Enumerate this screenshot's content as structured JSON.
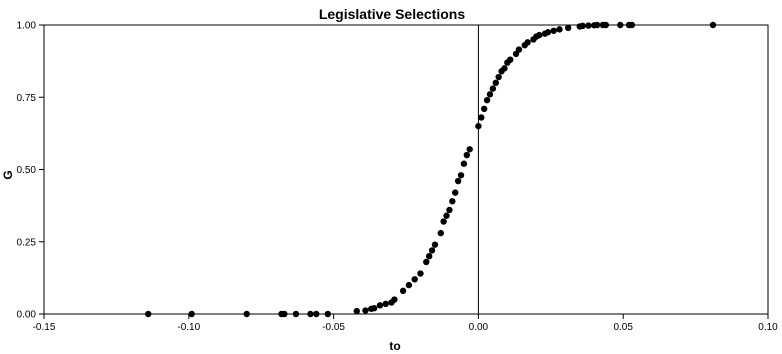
{
  "chart_data": {
    "type": "scatter",
    "title": "Legislative Selections",
    "xlabel": "to",
    "ylabel": "G",
    "xlim": [
      -0.15,
      0.1
    ],
    "ylim": [
      0.0,
      1.0
    ],
    "xticks": [
      "-0.15",
      "-0.10",
      "-0.05",
      "0.00",
      "0.05",
      "0.10"
    ],
    "yticks": [
      "0.00",
      "0.25",
      "0.50",
      "0.75",
      "1.00"
    ],
    "grid": false,
    "reference_line_x": 0.0,
    "marker_color": "#000000",
    "points": [
      [
        -0.114,
        0.0
      ],
      [
        -0.099,
        0.0
      ],
      [
        -0.08,
        0.0
      ],
      [
        -0.068,
        0.0
      ],
      [
        -0.067,
        0.0
      ],
      [
        -0.063,
        0.0
      ],
      [
        -0.058,
        0.0
      ],
      [
        -0.056,
        0.0
      ],
      [
        -0.052,
        0.0
      ],
      [
        -0.042,
        0.01
      ],
      [
        -0.039,
        0.012
      ],
      [
        -0.037,
        0.018
      ],
      [
        -0.036,
        0.02
      ],
      [
        -0.034,
        0.03
      ],
      [
        -0.032,
        0.035
      ],
      [
        -0.03,
        0.04
      ],
      [
        -0.029,
        0.05
      ],
      [
        -0.026,
        0.08
      ],
      [
        -0.024,
        0.1
      ],
      [
        -0.022,
        0.12
      ],
      [
        -0.02,
        0.14
      ],
      [
        -0.018,
        0.18
      ],
      [
        -0.017,
        0.2
      ],
      [
        -0.016,
        0.22
      ],
      [
        -0.015,
        0.24
      ],
      [
        -0.013,
        0.28
      ],
      [
        -0.012,
        0.32
      ],
      [
        -0.011,
        0.34
      ],
      [
        -0.01,
        0.36
      ],
      [
        -0.009,
        0.39
      ],
      [
        -0.008,
        0.42
      ],
      [
        -0.007,
        0.46
      ],
      [
        -0.006,
        0.48
      ],
      [
        -0.005,
        0.52
      ],
      [
        -0.004,
        0.55
      ],
      [
        -0.003,
        0.57
      ],
      [
        0.0,
        0.65
      ],
      [
        0.001,
        0.68
      ],
      [
        0.002,
        0.71
      ],
      [
        0.003,
        0.74
      ],
      [
        0.004,
        0.76
      ],
      [
        0.005,
        0.78
      ],
      [
        0.006,
        0.8
      ],
      [
        0.007,
        0.82
      ],
      [
        0.008,
        0.84
      ],
      [
        0.009,
        0.85
      ],
      [
        0.01,
        0.87
      ],
      [
        0.011,
        0.88
      ],
      [
        0.013,
        0.9
      ],
      [
        0.014,
        0.915
      ],
      [
        0.016,
        0.93
      ],
      [
        0.017,
        0.94
      ],
      [
        0.019,
        0.95
      ],
      [
        0.02,
        0.96
      ],
      [
        0.021,
        0.965
      ],
      [
        0.023,
        0.97
      ],
      [
        0.024,
        0.975
      ],
      [
        0.026,
        0.98
      ],
      [
        0.028,
        0.985
      ],
      [
        0.031,
        0.99
      ],
      [
        0.035,
        0.995
      ],
      [
        0.036,
        0.997
      ],
      [
        0.038,
        0.998
      ],
      [
        0.04,
        0.999
      ],
      [
        0.041,
        1.0
      ],
      [
        0.043,
        1.0
      ],
      [
        0.044,
        1.0
      ],
      [
        0.049,
        1.0
      ],
      [
        0.052,
        1.0
      ],
      [
        0.053,
        1.0
      ],
      [
        0.081,
        1.0
      ]
    ]
  }
}
